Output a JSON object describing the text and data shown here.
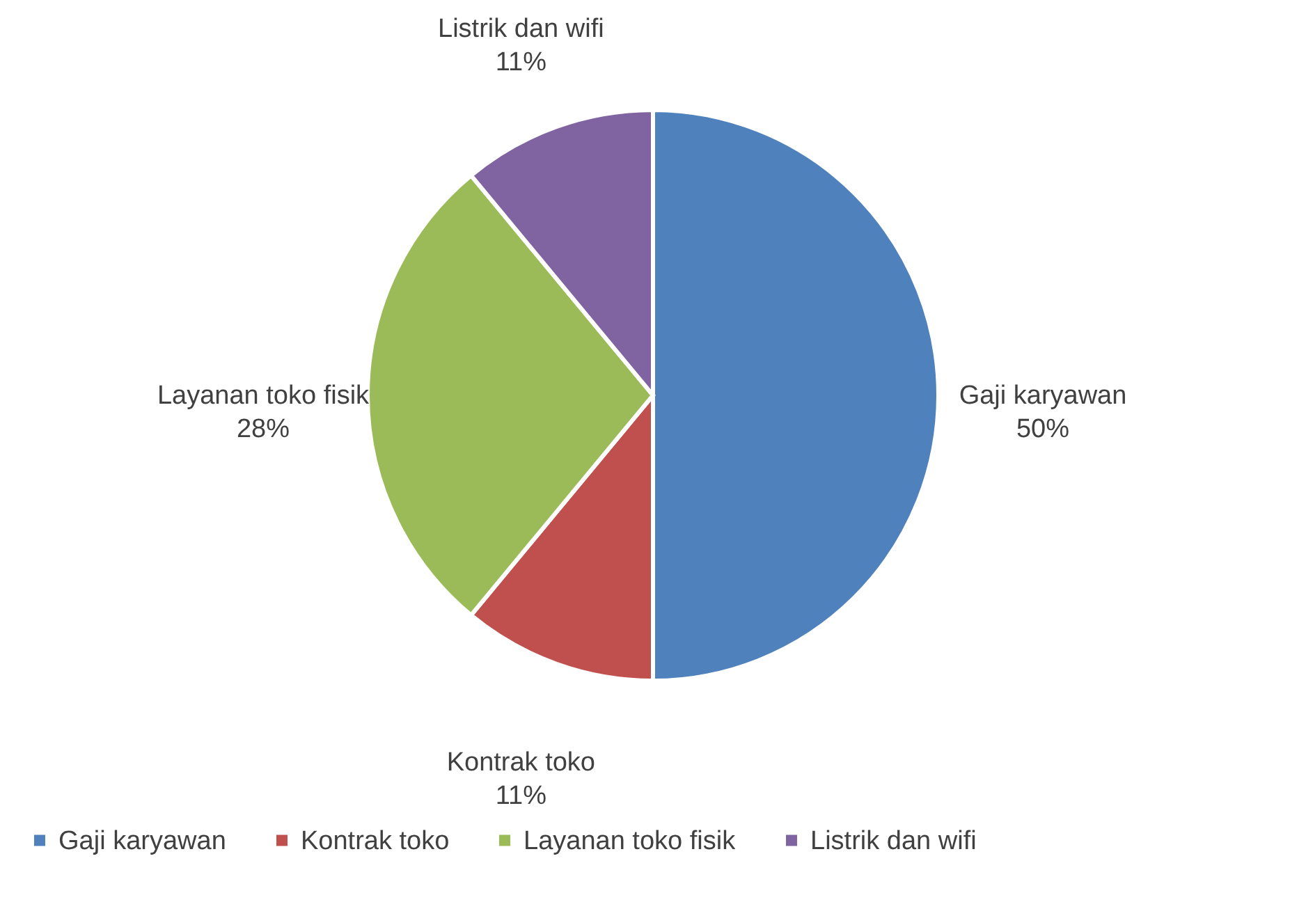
{
  "chart_data": {
    "type": "pie",
    "categories": [
      "Gaji karyawan",
      "Kontrak toko",
      "Layanan toko fisik",
      "Listrik dan wifi"
    ],
    "values": [
      50,
      11,
      28,
      11
    ],
    "value_labels": [
      "50%",
      "11%",
      "28%",
      "11%"
    ],
    "colors": [
      "#4f81bd",
      "#c0504d",
      "#9bbb59",
      "#8064a2"
    ],
    "legend": "bottom"
  }
}
